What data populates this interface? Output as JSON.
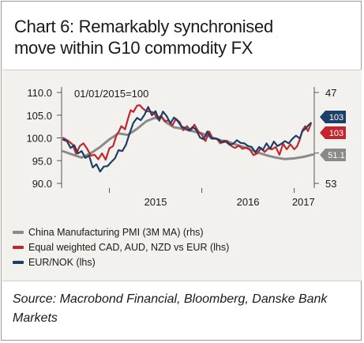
{
  "title_line1": "Chart 6: Remarkably synchronised",
  "title_line2": "move within G10 commodity FX",
  "source": "Source: Macrobond Financial, Bloomberg, Danske Bank Markets",
  "chart_data": {
    "type": "line",
    "annotation": "01/01/2015=100",
    "left_axis": {
      "ylim": [
        90,
        110
      ],
      "ticks": [
        "110.0",
        "105.0",
        "100.0",
        "95.0",
        "90.0"
      ]
    },
    "right_axis": {
      "ylim": [
        53,
        47
      ],
      "ticks": [
        "47",
        "51",
        "53"
      ]
    },
    "x_ticks": [
      "2015",
      "2016",
      "2017"
    ],
    "series": [
      {
        "name": "China Manufacturing PMI (3M MA) (rhs)",
        "axis": "right",
        "color": "#8a8a8a",
        "end_label": "51.1",
        "points": [
          [
            2014.5,
            50.88
          ],
          [
            2014.6,
            51.1
          ],
          [
            2014.7,
            51.3
          ],
          [
            2014.8,
            51.0
          ],
          [
            2014.9,
            50.6
          ],
          [
            2015.0,
            50.1
          ],
          [
            2015.1,
            49.7
          ],
          [
            2015.2,
            49.8
          ],
          [
            2015.3,
            49.4
          ],
          [
            2015.4,
            48.9
          ],
          [
            2015.48,
            48.7
          ],
          [
            2015.56,
            48.6
          ],
          [
            2015.62,
            49.0
          ],
          [
            2015.7,
            49.3
          ],
          [
            2015.8,
            49.4
          ],
          [
            2015.9,
            49.55
          ],
          [
            2016.0,
            49.7
          ],
          [
            2016.1,
            49.95
          ],
          [
            2016.2,
            50.15
          ],
          [
            2016.3,
            50.3
          ],
          [
            2016.4,
            50.5
          ],
          [
            2016.5,
            50.7
          ],
          [
            2016.6,
            50.95
          ],
          [
            2016.7,
            51.15
          ],
          [
            2016.8,
            51.3
          ],
          [
            2016.9,
            51.4
          ],
          [
            2017.0,
            51.35
          ],
          [
            2017.1,
            51.25
          ],
          [
            2017.2,
            51.1
          ]
        ]
      },
      {
        "name": "Equal weighted CAD, AUD, NZD vs EUR (lhs)",
        "axis": "left",
        "color": "#c0262c",
        "end_label": "103",
        "points": [
          [
            2014.5,
            100.0
          ],
          [
            2014.55,
            99.4
          ],
          [
            2014.6,
            98.6
          ],
          [
            2014.64,
            96.5
          ],
          [
            2014.68,
            98.2
          ],
          [
            2014.72,
            98.8
          ],
          [
            2014.76,
            97.6
          ],
          [
            2014.8,
            96.1
          ],
          [
            2014.84,
            96.3
          ],
          [
            2014.88,
            95.3
          ],
          [
            2014.92,
            96.6
          ],
          [
            2014.96,
            95.2
          ],
          [
            2015.0,
            97.7
          ],
          [
            2015.04,
            98.2
          ],
          [
            2015.08,
            100.8
          ],
          [
            2015.1,
            101.3
          ],
          [
            2015.13,
            102.6
          ],
          [
            2015.17,
            101.9
          ],
          [
            2015.2,
            104.1
          ],
          [
            2015.23,
            106.1
          ],
          [
            2015.26,
            105.7
          ],
          [
            2015.3,
            107.1
          ],
          [
            2015.33,
            107.2
          ],
          [
            2015.36,
            106.5
          ],
          [
            2015.4,
            105.9
          ],
          [
            2015.44,
            105.8
          ],
          [
            2015.48,
            105.6
          ],
          [
            2015.52,
            104.2
          ],
          [
            2015.56,
            104.9
          ],
          [
            2015.6,
            103.6
          ],
          [
            2015.64,
            103.9
          ],
          [
            2015.68,
            102.7
          ],
          [
            2015.72,
            104.2
          ],
          [
            2015.76,
            103.5
          ],
          [
            2015.8,
            101.7
          ],
          [
            2015.84,
            102.6
          ],
          [
            2015.88,
            101.6
          ],
          [
            2015.92,
            102.9
          ],
          [
            2015.96,
            101.5
          ],
          [
            2016.0,
            100.7
          ],
          [
            2016.04,
            99.3
          ],
          [
            2016.08,
            101.4
          ],
          [
            2016.12,
            99.8
          ],
          [
            2016.16,
            99.9
          ],
          [
            2016.2,
            98.8
          ],
          [
            2016.24,
            99.4
          ],
          [
            2016.28,
            99.3
          ],
          [
            2016.32,
            98.2
          ],
          [
            2016.36,
            97.8
          ],
          [
            2016.4,
            98.3
          ],
          [
            2016.44,
            97.6
          ],
          [
            2016.48,
            97.9
          ],
          [
            2016.52,
            97.4
          ],
          [
            2016.56,
            96.2
          ],
          [
            2016.6,
            96.6
          ],
          [
            2016.64,
            97.8
          ],
          [
            2016.68,
            96.9
          ],
          [
            2016.72,
            97.7
          ],
          [
            2016.76,
            97.5
          ],
          [
            2016.8,
            98.0
          ],
          [
            2016.84,
            96.3
          ],
          [
            2016.88,
            98.7
          ],
          [
            2016.92,
            97.5
          ],
          [
            2016.96,
            98.6
          ],
          [
            2017.0,
            97.5
          ],
          [
            2017.03,
            98.1
          ],
          [
            2017.06,
            99.6
          ],
          [
            2017.09,
            101.7
          ],
          [
            2017.12,
            102.6
          ],
          [
            2017.15,
            101.5
          ],
          [
            2017.18,
            103.1
          ]
        ]
      },
      {
        "name": "EUR/NOK (lhs)",
        "axis": "left",
        "color": "#1b3f66",
        "end_label": "103",
        "points": [
          [
            2014.5,
            99.6
          ],
          [
            2014.54,
            99.3
          ],
          [
            2014.58,
            97.8
          ],
          [
            2014.62,
            98.4
          ],
          [
            2014.66,
            96.6
          ],
          [
            2014.7,
            97.1
          ],
          [
            2014.74,
            95.6
          ],
          [
            2014.78,
            96.1
          ],
          [
            2014.82,
            93.5
          ],
          [
            2014.86,
            94.2
          ],
          [
            2014.9,
            92.6
          ],
          [
            2014.94,
            93.7
          ],
          [
            2014.98,
            93.8
          ],
          [
            2015.02,
            94.7
          ],
          [
            2015.06,
            95.5
          ],
          [
            2015.1,
            97.3
          ],
          [
            2015.14,
            97.1
          ],
          [
            2015.18,
            98.5
          ],
          [
            2015.22,
            101.1
          ],
          [
            2015.26,
            103.3
          ],
          [
            2015.3,
            104.4
          ],
          [
            2015.34,
            103.9
          ],
          [
            2015.38,
            105.1
          ],
          [
            2015.42,
            106.8
          ],
          [
            2015.46,
            105.0
          ],
          [
            2015.5,
            105.9
          ],
          [
            2015.54,
            103.8
          ],
          [
            2015.58,
            105.8
          ],
          [
            2015.62,
            104.8
          ],
          [
            2015.66,
            103.2
          ],
          [
            2015.7,
            104.5
          ],
          [
            2015.74,
            103.7
          ],
          [
            2015.78,
            102.5
          ],
          [
            2015.82,
            102.2
          ],
          [
            2015.86,
            101.6
          ],
          [
            2015.9,
            102.4
          ],
          [
            2015.94,
            101.8
          ],
          [
            2015.98,
            100.1
          ],
          [
            2016.02,
            99.7
          ],
          [
            2016.06,
            101.4
          ],
          [
            2016.1,
            99.9
          ],
          [
            2016.14,
            99.9
          ],
          [
            2016.18,
            99.7
          ],
          [
            2016.22,
            99.0
          ],
          [
            2016.26,
            99.2
          ],
          [
            2016.3,
            98.5
          ],
          [
            2016.34,
            98.7
          ],
          [
            2016.38,
            99.5
          ],
          [
            2016.42,
            98.9
          ],
          [
            2016.46,
            98.8
          ],
          [
            2016.5,
            98.2
          ],
          [
            2016.54,
            98.0
          ],
          [
            2016.58,
            96.8
          ],
          [
            2016.62,
            98.0
          ],
          [
            2016.66,
            97.3
          ],
          [
            2016.7,
            98.8
          ],
          [
            2016.74,
            97.6
          ],
          [
            2016.78,
            99.2
          ],
          [
            2016.82,
            98.2
          ],
          [
            2016.86,
            98.7
          ],
          [
            2016.9,
            99.3
          ],
          [
            2016.94,
            98.8
          ],
          [
            2016.98,
            99.8
          ],
          [
            2017.02,
            100.5
          ],
          [
            2017.06,
            99.9
          ],
          [
            2017.09,
            101.5
          ],
          [
            2017.12,
            102.0
          ],
          [
            2017.15,
            102.7
          ],
          [
            2017.18,
            103.3
          ]
        ]
      }
    ]
  }
}
